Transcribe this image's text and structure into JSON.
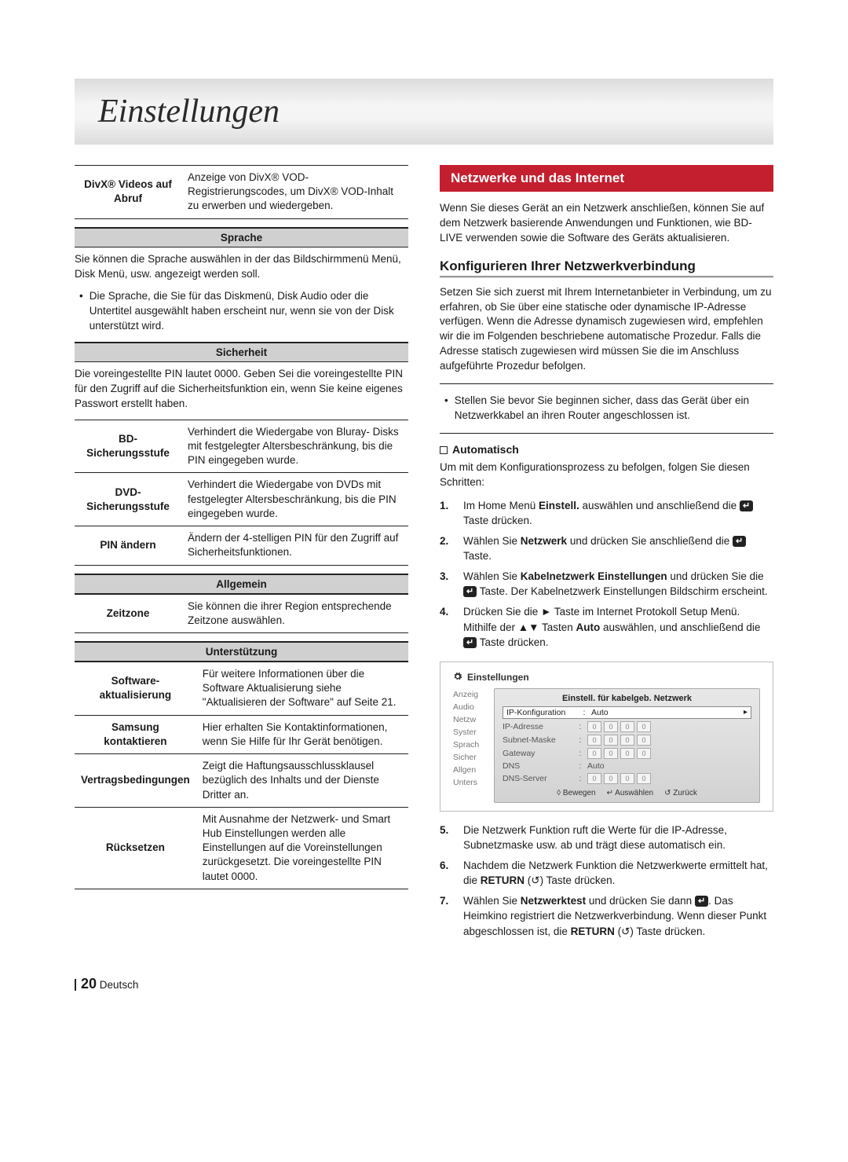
{
  "page_title": "Einstellungen",
  "left": {
    "divx_row": {
      "key": "DivX® Videos auf Abruf",
      "val": "Anzeige von DivX® VOD-Registrierungscodes, um DivX® VOD-Inhalt zu erwerben und wiedergeben."
    },
    "sprache_head": "Sprache",
    "sprache_para": "Sie können die Sprache auswählen in der das Bildschirmmenü Menü, Disk Menü, usw. angezeigt werden soll.",
    "sprache_bullet": "Die Sprache, die Sie für das Diskmenü, Disk Audio oder die Untertitel ausgewählt haben erscheint nur, wenn sie von der Disk unterstützt wird.",
    "sicherheit_head": "Sicherheit",
    "sicherheit_para": "Die voreingestellte PIN lautet 0000. Geben Sei die voreingestellte PIN für den Zugriff auf die Sicherheitsfunktion ein, wenn Sie keine eigenes Passwort erstellt haben.",
    "sich_rows": [
      {
        "key": "BD-Sicherungsstufe",
        "val": "Verhindert die Wiedergabe von Bluray- Disks mit festgelegter Altersbeschränkung, bis die PIN eingegeben wurde."
      },
      {
        "key": "DVD-Sicherungsstufe",
        "val": "Verhindert die Wiedergabe von DVDs mit festgelegter Altersbeschränkung, bis die PIN eingegeben wurde."
      },
      {
        "key": "PIN ändern",
        "val": "Ändern der 4-stelligen PIN für den Zugriff auf Sicherheitsfunktionen."
      }
    ],
    "allgemein_head": "Allgemein",
    "allg_rows": [
      {
        "key": "Zeitzone",
        "val": "Sie können die ihrer Region entsprechende Zeitzone auswählen."
      }
    ],
    "unterst_head": "Unterstützung",
    "unt_rows": [
      {
        "key": "Software-aktualisierung",
        "val": "Für weitere Informationen über die Software Aktualisierung siehe \"Aktualisieren der Software\" auf Seite 21."
      },
      {
        "key": "Samsung kontaktieren",
        "val": "Hier erhalten Sie Kontaktinformationen, wenn Sie Hilfe für Ihr Gerät benötigen."
      },
      {
        "key": "Vertragsbedingungen",
        "val": "Zeigt die Haftungsausschlussklausel bezüglich des Inhalts und der Dienste Dritter an."
      },
      {
        "key": "Rücksetzen",
        "val": "Mit Ausnahme der Netzwerk- und Smart Hub Einstellungen werden alle Einstellungen auf die Voreinstellungen zurückgesetzt. Die voreingestellte PIN lautet 0000."
      }
    ]
  },
  "right": {
    "red_title": "Netzwerke und das Internet",
    "intro": "Wenn Sie dieses Gerät an ein Netzwerk anschließen, können Sie auf dem Netzwerk basierende Anwendungen und Funktionen, wie BD-LIVE verwenden sowie die Software des Geräts aktualisieren.",
    "h3": "Konfigurieren Ihrer Netzwerkverbindung",
    "konfig_para": "Setzen Sie sich zuerst mit Ihrem Internetanbieter in Verbindung, um zu erfahren, ob Sie über eine statische oder dynamische IP-Adresse verfügen. Wenn die Adresse dynamisch zugewiesen wird, empfehlen wir die im Folgenden beschriebene automatische Prozedur. Falls die Adresse statisch zugewiesen wird müssen Sie die im Anschluss aufgeführte Prozedur befolgen.",
    "box_bullet": "Stellen Sie bevor Sie beginnen sicher, dass das Gerät über ein Netzwerkkabel an ihren Router angeschlossen ist.",
    "auto_label": "Automatisch",
    "auto_intro": "Um mit dem Konfigurationsprozess zu befolgen, folgen Sie diesen Schritten:",
    "steps": [
      {
        "pre": "Im Home Menü ",
        "b1": "Einstell.",
        "mid1": " auswählen und anschließend die ",
        "icon": true,
        "post": " Taste drücken."
      },
      {
        "pre": "Wählen Sie ",
        "b1": "Netzwerk",
        "mid1": " und drücken Sie anschließend die ",
        "icon": true,
        "post": " Taste."
      },
      {
        "pre": "Wählen Sie ",
        "b1": "Kabelnetzwerk Einstellungen",
        "mid1": " und drücken Sie die ",
        "icon": true,
        "post": " Taste. Der Kabelnetzwerk Einstellungen Bildschirm erscheint."
      },
      {
        "pre": "Drücken Sie die ► Taste im Internet Protokoll Setup Menü. Mithilfe der ▲▼ Tasten ",
        "b1": "Auto",
        "mid1": " auswählen, und anschließend die ",
        "icon": true,
        "post": " Taste drücken."
      }
    ],
    "steps2": [
      {
        "text": "Die Netzwerk Funktion ruft die Werte für die IP-Adresse, Subnetzmaske usw. ab und trägt diese automatisch ein."
      },
      {
        "pre": "Nachdem die Netzwerk Funktion die Netzwerkwerte ermittelt hat, die ",
        "b1": "RETURN",
        "post": " (↺) Taste drücken."
      },
      {
        "pre": "Wählen Sie ",
        "b1": "Netzwerktest",
        "mid1": " und drücken Sie dann ",
        "icon": true,
        "post": ". Das Heimkino registriert die Netzwerkverbindung. Wenn dieser Punkt abgeschlossen ist, die ",
        "b2": "RETURN",
        "post2": " (↺) Taste drücken."
      }
    ],
    "screenshot": {
      "title": "Einstellungen",
      "panel_title": "Einstell. für kabelgeb. Netzwerk",
      "side": [
        "Anzeig",
        "Audio",
        "Netzw",
        "Syster",
        "Sprach",
        "Sicher",
        "Allgen",
        "Unters"
      ],
      "rows": [
        {
          "label": "IP-Konfiguration",
          "value": "Auto",
          "hl": true,
          "arrow": true
        },
        {
          "label": "IP-Adresse",
          "octets": [
            "0",
            "0",
            "0",
            "0"
          ]
        },
        {
          "label": "Subnet-Maske",
          "octets": [
            "0",
            "0",
            "0",
            "0"
          ]
        },
        {
          "label": "Gateway",
          "octets": [
            "0",
            "0",
            "0",
            "0"
          ]
        },
        {
          "label": "DNS",
          "value": "Auto"
        },
        {
          "label": "DNS-Server",
          "octets": [
            "0",
            "0",
            "0",
            "0"
          ]
        }
      ],
      "footer": [
        "◊ Bewegen",
        "↵ Auswählen",
        "↺ Zurück"
      ]
    }
  },
  "footer": {
    "num": "20",
    "lang": "Deutsch"
  }
}
